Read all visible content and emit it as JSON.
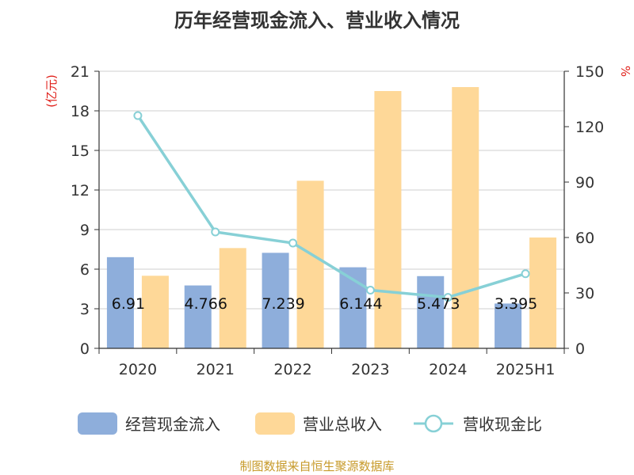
{
  "chart_data": {
    "type": "bar",
    "title": "历年经营现金流入、营业收入情况",
    "categories": [
      "2020",
      "2021",
      "2022",
      "2023",
      "2024",
      "2025H1"
    ],
    "series": [
      {
        "name": "经营现金流入",
        "type": "bar",
        "axis": "left",
        "color": "#8eaedb",
        "values": [
          6.91,
          4.766,
          7.239,
          6.144,
          5.473,
          3.395
        ]
      },
      {
        "name": "营业总收入",
        "type": "bar",
        "axis": "left",
        "color": "#fed898",
        "values": [
          5.5,
          7.6,
          12.7,
          19.5,
          19.8,
          8.4
        ]
      },
      {
        "name": "营收现金比",
        "type": "line",
        "axis": "right",
        "color": "#87d0d6",
        "values": [
          126,
          63,
          57,
          31.5,
          27.6,
          40.4
        ]
      }
    ],
    "left_axis": {
      "unit": "(亿元)",
      "ylim": [
        0,
        21
      ],
      "ticks": [
        "0",
        "3",
        "6",
        "9",
        "12",
        "15",
        "18",
        "21"
      ]
    },
    "right_axis": {
      "unit": "%",
      "ylim": [
        0,
        150
      ],
      "ticks": [
        "0",
        "30",
        "60",
        "90",
        "120",
        "150"
      ]
    },
    "data_labels": [
      "6.91",
      "4.766",
      "7.239",
      "6.144",
      "5.473",
      "3.395"
    ],
    "grid": true,
    "legend_position": "bottom"
  },
  "source_note": "制图数据来自恒生聚源数据库"
}
